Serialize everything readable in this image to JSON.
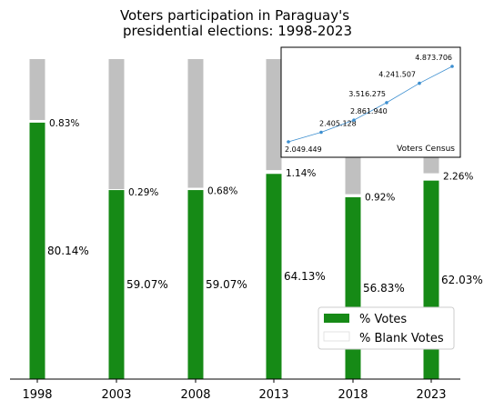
{
  "chart_data": [
    {
      "type": "bar",
      "stacked": true,
      "title": "Voters participation in Paraguay's\npresidential elections: 1998-2023",
      "categories": [
        "1998",
        "2003",
        "2008",
        "2013",
        "2018",
        "2023"
      ],
      "series": [
        {
          "name": "% Votes",
          "values": [
            80.14,
            59.07,
            59.07,
            64.13,
            56.83,
            62.03
          ],
          "labels": [
            "80.14%",
            "59.07%",
            "59.07%",
            "64.13%",
            "56.83%",
            "62.03%"
          ],
          "color": "#168a16"
        },
        {
          "name": "% Blank Votes",
          "values": [
            0.83,
            0.29,
            0.68,
            1.14,
            0.92,
            2.26
          ],
          "labels": [
            "0.83%",
            "0.29%",
            "0.68%",
            "1.14%",
            "0.92%",
            "2.26%"
          ],
          "color": "#ffffff"
        },
        {
          "values": [
            19.03,
            40.64,
            40.25,
            34.73,
            42.25,
            35.71
          ],
          "color": "#c0c0c0"
        }
      ],
      "ylim": [
        0,
        100
      ],
      "legend_position": "lower-right",
      "grid": false
    },
    {
      "type": "line",
      "title": "Voters Census",
      "x": [
        "1998",
        "2003",
        "2008",
        "2013",
        "2018",
        "2023"
      ],
      "values": [
        2049449,
        2405128,
        2861940,
        3516275,
        4241507,
        4873706
      ],
      "labels": [
        "2.049.449",
        "2.405.128",
        "2.861.940",
        "3.516.275",
        "4.241.507",
        "4.873.706"
      ],
      "color": "#3d8fd0",
      "grid": false
    }
  ],
  "title_lines": [
    "Voters participation in Paraguay's",
    "presidential elections: 1998-2023"
  ]
}
